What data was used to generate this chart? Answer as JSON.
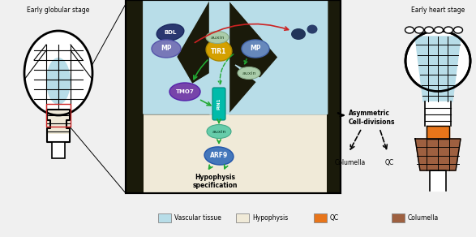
{
  "bg_color": "#f0f0f0",
  "vascular_color": "#b8dde8",
  "hypophysis_color": "#f0ead8",
  "qc_color": "#e8751a",
  "columella_color": "#9e6040",
  "dark_tissue": "#1a1a0a",
  "mp_left_color": "#7878b8",
  "mp_right_color": "#6688bb",
  "bdl_color": "#2a3870",
  "tir1_color": "#d4a000",
  "tmo7_color": "#7744aa",
  "arf9_color": "#4477bb",
  "auxin_green_color": "#aaccaa",
  "auxin_teal_color": "#66ccaa",
  "pin1_color": "#00bbaa",
  "arrow_green": "#22aa33",
  "arrow_red": "#cc2222",
  "left_title": "Early globular stage",
  "right_title": "Early heart stage",
  "text_asymmetric": "Asymmetric\nCell-divisions",
  "text_columella": "Columella",
  "text_qc": "QC",
  "text_hypophysis_spec": "Hypophysis\nspecification",
  "legend_items": [
    {
      "label": "Vascular tissue",
      "color": "#b8dde8"
    },
    {
      "label": "Hypophysis",
      "color": "#f0ead8"
    },
    {
      "label": "QC",
      "color": "#e8751a"
    },
    {
      "label": "Columella",
      "color": "#9e6040"
    }
  ]
}
